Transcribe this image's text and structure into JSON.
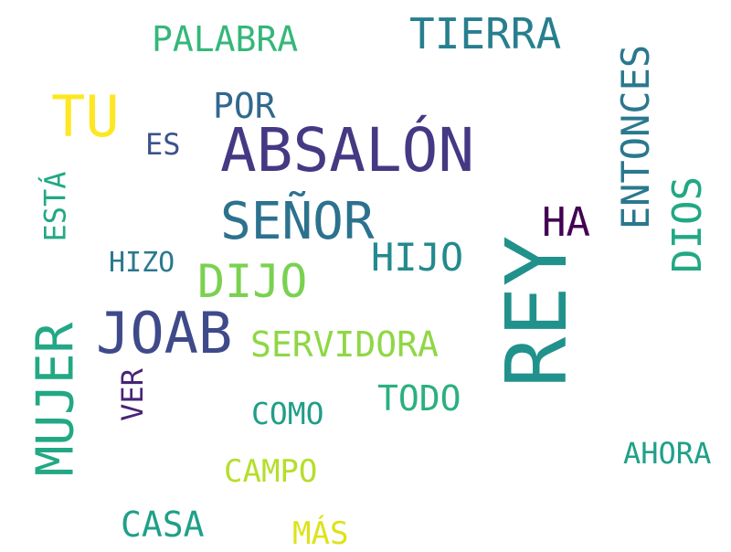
{
  "words": [
    {
      "id": "rey",
      "text": "REY",
      "color": "#21918c"
    },
    {
      "id": "absalon",
      "text": "ABSALÓN",
      "color": "#443983"
    },
    {
      "id": "joab",
      "text": "JOAB",
      "color": "#3e4a89"
    },
    {
      "id": "senor",
      "text": "SEÑOR",
      "color": "#2c728e"
    },
    {
      "id": "mujer",
      "text": "MUJER",
      "color": "#22a884"
    },
    {
      "id": "tu",
      "text": "TU",
      "color": "#fde725"
    },
    {
      "id": "dijo",
      "text": "DIJO",
      "color": "#7ad151"
    },
    {
      "id": "tierra",
      "text": "TIERRA",
      "color": "#277f8e"
    },
    {
      "id": "dios",
      "text": "DIOS",
      "color": "#22a884"
    },
    {
      "id": "entonces",
      "text": "ENTONCES",
      "color": "#2a788e"
    },
    {
      "id": "hijo",
      "text": "HIJO",
      "color": "#238a8d"
    },
    {
      "id": "ha",
      "text": "HA",
      "color": "#440154"
    },
    {
      "id": "servidora",
      "text": "SERVIDORA",
      "color": "#8fd744"
    },
    {
      "id": "palabra",
      "text": "PALABRA",
      "color": "#35b779"
    },
    {
      "id": "todo",
      "text": "TODO",
      "color": "#2ab07f"
    },
    {
      "id": "por",
      "text": "POR",
      "color": "#31688e"
    },
    {
      "id": "casa",
      "text": "CASA",
      "color": "#1fa088"
    },
    {
      "id": "campo",
      "text": "CAMPO",
      "color": "#b5de2b"
    },
    {
      "id": "ahora",
      "text": "AHORA",
      "color": "#1fa088"
    },
    {
      "id": "como",
      "text": "COMO",
      "color": "#1f9e89"
    },
    {
      "id": "mas",
      "text": "MÁS",
      "color": "#dce319"
    },
    {
      "id": "esta",
      "text": "ESTÁ",
      "color": "#22a884"
    },
    {
      "id": "ver",
      "text": "VER",
      "color": "#482475"
    },
    {
      "id": "es",
      "text": "ES",
      "color": "#3b528b"
    },
    {
      "id": "hizo",
      "text": "HIZO",
      "color": "#2a788e"
    }
  ]
}
